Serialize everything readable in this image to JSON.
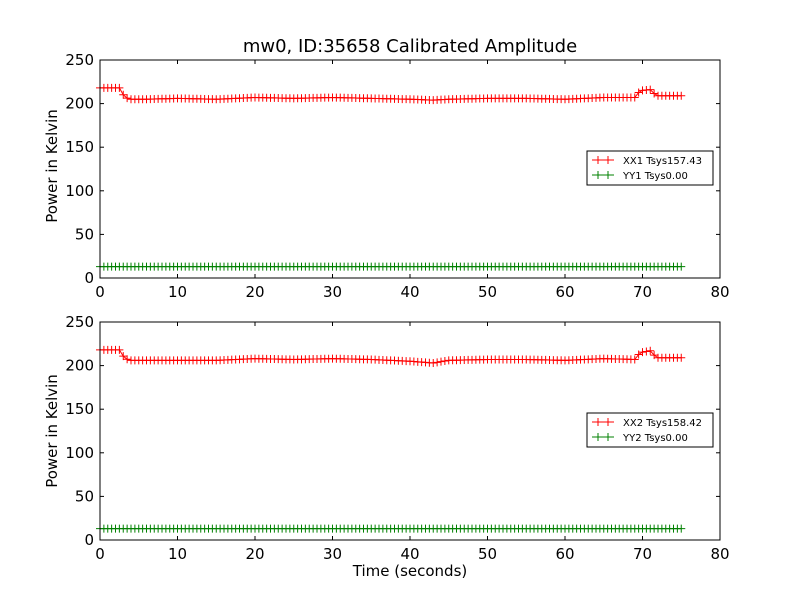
{
  "figure": {
    "title": "mw0, ID:35658 Calibrated Amplitude",
    "xlabel": "Time (seconds)",
    "ylabel": "Power in Kelvin"
  },
  "colors": {
    "xx": "#ff0000",
    "yy": "#008000",
    "axes": "#000000"
  },
  "chart_data": [
    {
      "type": "line",
      "marker": "plus",
      "title": "mw0, ID:35658 Calibrated Amplitude",
      "xlabel": "",
      "ylabel": "Power in Kelvin",
      "xlim": [
        0,
        80
      ],
      "ylim": [
        0,
        250
      ],
      "xticks": [
        "0",
        "10",
        "20",
        "30",
        "40",
        "50",
        "60",
        "70",
        "80"
      ],
      "yticks": [
        "0",
        "50",
        "100",
        "150",
        "200",
        "250"
      ],
      "grid": false,
      "legend_position": "right",
      "series": [
        {
          "name": "XX1 Tsys157.43",
          "color": "#ff0000",
          "x_start": 0,
          "x_step": 0.5,
          "knots": [
            [
              0,
              218
            ],
            [
              2.5,
              218
            ],
            [
              3.2,
              207
            ],
            [
              4,
              205
            ],
            [
              6,
              205
            ],
            [
              10,
              206
            ],
            [
              15,
              205
            ],
            [
              20,
              207
            ],
            [
              25,
              206
            ],
            [
              30,
              207
            ],
            [
              35,
              206
            ],
            [
              40,
              205
            ],
            [
              43,
              204
            ],
            [
              45,
              205
            ],
            [
              50,
              206
            ],
            [
              55,
              206
            ],
            [
              60,
              205
            ],
            [
              65,
              207
            ],
            [
              69,
              207
            ],
            [
              69.7,
              215
            ],
            [
              71,
              216
            ],
            [
              71.8,
              209
            ],
            [
              75,
              209
            ]
          ]
        },
        {
          "name": "YY1 Tsys0.00",
          "color": "#008000",
          "x_start": 0,
          "x_step": 0.5,
          "knots": [
            [
              0,
              13
            ],
            [
              75,
              13
            ]
          ]
        }
      ]
    },
    {
      "type": "line",
      "marker": "plus",
      "title": "",
      "xlabel": "Time (seconds)",
      "ylabel": "Power in Kelvin",
      "xlim": [
        0,
        80
      ],
      "ylim": [
        0,
        250
      ],
      "xticks": [
        "0",
        "10",
        "20",
        "30",
        "40",
        "50",
        "60",
        "70",
        "80"
      ],
      "yticks": [
        "0",
        "50",
        "100",
        "150",
        "200",
        "250"
      ],
      "grid": false,
      "legend_position": "right",
      "series": [
        {
          "name": "XX2 Tsys158.42",
          "color": "#ff0000",
          "x_start": 0,
          "x_step": 0.5,
          "knots": [
            [
              0,
              218
            ],
            [
              2.5,
              218
            ],
            [
              3.2,
              208
            ],
            [
              4,
              206
            ],
            [
              6,
              206
            ],
            [
              10,
              206
            ],
            [
              15,
              206
            ],
            [
              20,
              208
            ],
            [
              25,
              207
            ],
            [
              30,
              208
            ],
            [
              35,
              207
            ],
            [
              40,
              205
            ],
            [
              43,
              203
            ],
            [
              45,
              206
            ],
            [
              50,
              207
            ],
            [
              55,
              207
            ],
            [
              60,
              206
            ],
            [
              65,
              208
            ],
            [
              69,
              207
            ],
            [
              69.7,
              215
            ],
            [
              71,
              217
            ],
            [
              71.8,
              209
            ],
            [
              75,
              209
            ]
          ]
        },
        {
          "name": "YY2 Tsys0.00",
          "color": "#008000",
          "x_start": 0,
          "x_step": 0.5,
          "knots": [
            [
              0,
              13
            ],
            [
              75,
              13
            ]
          ]
        }
      ]
    }
  ]
}
